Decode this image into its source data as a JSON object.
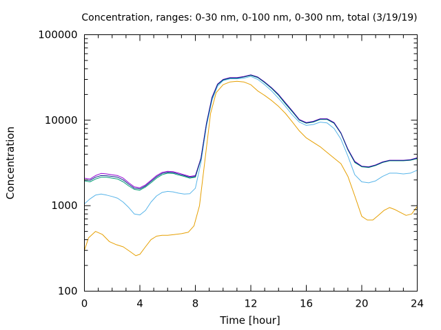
{
  "chart_data": {
    "type": "line",
    "title": "Concentration, ranges: 0-30 nm, 0-100 nm, 0-300 nm, total (3/19/19)",
    "xlabel": "Time [hour]",
    "ylabel": "Concentration",
    "xlim": [
      0,
      24
    ],
    "ylim": [
      100,
      100000
    ],
    "yscale": "log",
    "xticks": [
      0,
      4,
      8,
      12,
      16,
      20,
      24
    ],
    "xtick_labels": [
      "0",
      "4",
      "8",
      "12",
      "16",
      "20",
      "24"
    ],
    "yticks": [
      100,
      1000,
      10000,
      100000
    ],
    "ytick_labels": [
      "100",
      "1000",
      "10000",
      "100000"
    ],
    "grid": false,
    "legend": "none",
    "series": [
      {
        "color": "#e69f00",
        "points": [
          [
            0,
            300
          ],
          [
            0.3,
            420
          ],
          [
            0.8,
            500
          ],
          [
            1.3,
            460
          ],
          [
            1.8,
            380
          ],
          [
            2.3,
            350
          ],
          [
            2.8,
            330
          ],
          [
            3.3,
            290
          ],
          [
            3.7,
            260
          ],
          [
            4.0,
            270
          ],
          [
            4.4,
            330
          ],
          [
            4.8,
            400
          ],
          [
            5.2,
            440
          ],
          [
            5.6,
            450
          ],
          [
            6.0,
            450
          ],
          [
            6.5,
            460
          ],
          [
            7.0,
            470
          ],
          [
            7.5,
            490
          ],
          [
            7.9,
            580
          ],
          [
            8.3,
            1000
          ],
          [
            8.7,
            3500
          ],
          [
            9.1,
            12000
          ],
          [
            9.5,
            21000
          ],
          [
            10.0,
            26000
          ],
          [
            10.5,
            28000
          ],
          [
            11.0,
            28500
          ],
          [
            11.5,
            28000
          ],
          [
            12.0,
            26000
          ],
          [
            12.5,
            22000
          ],
          [
            13.0,
            19500
          ],
          [
            13.5,
            17000
          ],
          [
            14.0,
            14500
          ],
          [
            14.5,
            12000
          ],
          [
            15.0,
            9500
          ],
          [
            15.5,
            7500
          ],
          [
            16.0,
            6200
          ],
          [
            16.5,
            5500
          ],
          [
            17.0,
            4900
          ],
          [
            17.5,
            4200
          ],
          [
            18.0,
            3600
          ],
          [
            18.5,
            3100
          ],
          [
            19.0,
            2200
          ],
          [
            19.5,
            1300
          ],
          [
            20.0,
            750
          ],
          [
            20.4,
            680
          ],
          [
            20.8,
            680
          ],
          [
            21.2,
            770
          ],
          [
            21.6,
            880
          ],
          [
            22.0,
            950
          ],
          [
            22.4,
            900
          ],
          [
            22.8,
            830
          ],
          [
            23.2,
            770
          ],
          [
            23.6,
            800
          ],
          [
            24.0,
            980
          ]
        ]
      },
      {
        "color": "#56b4e9",
        "points": [
          [
            0,
            1050
          ],
          [
            0.4,
            1200
          ],
          [
            0.8,
            1330
          ],
          [
            1.2,
            1370
          ],
          [
            1.6,
            1330
          ],
          [
            2.0,
            1280
          ],
          [
            2.4,
            1220
          ],
          [
            2.8,
            1100
          ],
          [
            3.2,
            950
          ],
          [
            3.6,
            800
          ],
          [
            4.0,
            780
          ],
          [
            4.4,
            880
          ],
          [
            4.8,
            1100
          ],
          [
            5.2,
            1300
          ],
          [
            5.6,
            1430
          ],
          [
            6.0,
            1470
          ],
          [
            6.4,
            1450
          ],
          [
            6.8,
            1400
          ],
          [
            7.2,
            1370
          ],
          [
            7.6,
            1380
          ],
          [
            8.0,
            1600
          ],
          [
            8.4,
            3200
          ],
          [
            8.8,
            8500
          ],
          [
            9.2,
            17000
          ],
          [
            9.6,
            25000
          ],
          [
            10.0,
            29000
          ],
          [
            10.5,
            30500
          ],
          [
            11.0,
            30500
          ],
          [
            11.5,
            31000
          ],
          [
            12.0,
            32500
          ],
          [
            12.5,
            30000
          ],
          [
            13.0,
            26000
          ],
          [
            13.5,
            22000
          ],
          [
            14.0,
            18000
          ],
          [
            14.5,
            14500
          ],
          [
            15.0,
            11500
          ],
          [
            15.5,
            9500
          ],
          [
            16.0,
            8700
          ],
          [
            16.5,
            8900
          ],
          [
            17.0,
            9500
          ],
          [
            17.5,
            9300
          ],
          [
            18.0,
            8000
          ],
          [
            18.5,
            6000
          ],
          [
            19.0,
            3800
          ],
          [
            19.5,
            2300
          ],
          [
            20.0,
            1900
          ],
          [
            20.5,
            1850
          ],
          [
            21.0,
            1950
          ],
          [
            21.5,
            2200
          ],
          [
            22.0,
            2400
          ],
          [
            22.5,
            2400
          ],
          [
            23.0,
            2350
          ],
          [
            23.5,
            2400
          ],
          [
            24.0,
            2600
          ]
        ]
      },
      {
        "color": "#009e73",
        "points": [
          [
            0,
            1950
          ],
          [
            0.4,
            1900
          ],
          [
            0.8,
            2050
          ],
          [
            1.2,
            2150
          ],
          [
            1.6,
            2150
          ],
          [
            2.0,
            2100
          ],
          [
            2.4,
            2050
          ],
          [
            2.8,
            1900
          ],
          [
            3.2,
            1700
          ],
          [
            3.6,
            1550
          ],
          [
            4.0,
            1520
          ],
          [
            4.4,
            1650
          ],
          [
            4.8,
            1850
          ],
          [
            5.2,
            2100
          ],
          [
            5.6,
            2300
          ],
          [
            6.0,
            2400
          ],
          [
            6.4,
            2380
          ],
          [
            6.8,
            2280
          ],
          [
            7.2,
            2200
          ],
          [
            7.6,
            2100
          ],
          [
            8.0,
            2150
          ],
          [
            8.4,
            3500
          ],
          [
            8.8,
            9000
          ],
          [
            9.2,
            18000
          ],
          [
            9.6,
            26000
          ],
          [
            10.0,
            29500
          ],
          [
            10.5,
            31000
          ],
          [
            11.0,
            31000
          ],
          [
            11.5,
            32000
          ],
          [
            12.0,
            33500
          ],
          [
            12.5,
            31500
          ],
          [
            13.0,
            27500
          ],
          [
            13.5,
            23500
          ],
          [
            14.0,
            19500
          ],
          [
            14.5,
            15500
          ],
          [
            15.0,
            12500
          ],
          [
            15.5,
            10000
          ],
          [
            16.0,
            9200
          ],
          [
            16.5,
            9500
          ],
          [
            17.0,
            10200
          ],
          [
            17.5,
            10200
          ],
          [
            18.0,
            9200
          ],
          [
            18.5,
            7000
          ],
          [
            19.0,
            4500
          ],
          [
            19.5,
            3200
          ],
          [
            20.0,
            2850
          ],
          [
            20.5,
            2800
          ],
          [
            21.0,
            2950
          ],
          [
            21.5,
            3200
          ],
          [
            22.0,
            3350
          ],
          [
            22.5,
            3350
          ],
          [
            23.0,
            3350
          ],
          [
            23.5,
            3400
          ],
          [
            24.0,
            3550
          ]
        ]
      },
      {
        "color": "#9400d3",
        "points": [
          [
            0,
            2100
          ],
          [
            0.4,
            2050
          ],
          [
            0.8,
            2250
          ],
          [
            1.2,
            2380
          ],
          [
            1.6,
            2350
          ],
          [
            2.0,
            2300
          ],
          [
            2.4,
            2250
          ],
          [
            2.8,
            2100
          ],
          [
            3.2,
            1850
          ],
          [
            3.6,
            1660
          ],
          [
            4.0,
            1620
          ],
          [
            4.4,
            1750
          ],
          [
            4.8,
            1980
          ],
          [
            5.2,
            2250
          ],
          [
            5.6,
            2450
          ],
          [
            6.0,
            2520
          ],
          [
            6.4,
            2500
          ],
          [
            6.8,
            2400
          ],
          [
            7.2,
            2300
          ],
          [
            7.6,
            2200
          ],
          [
            8.0,
            2250
          ],
          [
            8.4,
            3600
          ],
          [
            8.8,
            9200
          ],
          [
            9.2,
            18500
          ],
          [
            9.6,
            26500
          ],
          [
            10.0,
            30000
          ],
          [
            10.5,
            31500
          ],
          [
            11.0,
            31500
          ],
          [
            11.5,
            32500
          ],
          [
            12.0,
            34000
          ],
          [
            12.5,
            32000
          ],
          [
            13.0,
            28000
          ],
          [
            13.5,
            24000
          ],
          [
            14.0,
            20000
          ],
          [
            14.5,
            16000
          ],
          [
            15.0,
            12800
          ],
          [
            15.5,
            10200
          ],
          [
            16.0,
            9400
          ],
          [
            16.5,
            9700
          ],
          [
            17.0,
            10400
          ],
          [
            17.5,
            10400
          ],
          [
            18.0,
            9400
          ],
          [
            18.5,
            7100
          ],
          [
            19.0,
            4600
          ],
          [
            19.5,
            3300
          ],
          [
            20.0,
            2900
          ],
          [
            20.5,
            2850
          ],
          [
            21.0,
            3000
          ],
          [
            21.5,
            3250
          ],
          [
            22.0,
            3400
          ],
          [
            22.5,
            3400
          ],
          [
            23.0,
            3400
          ],
          [
            23.5,
            3450
          ],
          [
            24.0,
            3650
          ]
        ]
      },
      {
        "color": "#0a2a8a",
        "points": [
          [
            0,
            2000
          ],
          [
            0.4,
            1980
          ],
          [
            0.8,
            2150
          ],
          [
            1.2,
            2250
          ],
          [
            1.6,
            2240
          ],
          [
            2.0,
            2200
          ],
          [
            2.4,
            2150
          ],
          [
            2.8,
            2000
          ],
          [
            3.2,
            1780
          ],
          [
            3.6,
            1600
          ],
          [
            4.0,
            1570
          ],
          [
            4.4,
            1700
          ],
          [
            4.8,
            1920
          ],
          [
            5.2,
            2180
          ],
          [
            5.6,
            2380
          ],
          [
            6.0,
            2460
          ],
          [
            6.4,
            2440
          ],
          [
            6.8,
            2340
          ],
          [
            7.2,
            2250
          ],
          [
            7.6,
            2150
          ],
          [
            8.0,
            2200
          ],
          [
            8.4,
            3550
          ],
          [
            8.8,
            9100
          ],
          [
            9.2,
            18200
          ],
          [
            9.6,
            26200
          ],
          [
            10.0,
            29800
          ],
          [
            10.5,
            31200
          ],
          [
            11.0,
            31200
          ],
          [
            11.5,
            32200
          ],
          [
            12.0,
            33800
          ],
          [
            12.5,
            31800
          ],
          [
            13.0,
            27800
          ],
          [
            13.5,
            23800
          ],
          [
            14.0,
            19800
          ],
          [
            14.5,
            15800
          ],
          [
            15.0,
            12700
          ],
          [
            15.5,
            10100
          ],
          [
            16.0,
            9300
          ],
          [
            16.5,
            9600
          ],
          [
            17.0,
            10300
          ],
          [
            17.5,
            10300
          ],
          [
            18.0,
            9300
          ],
          [
            18.5,
            7050
          ],
          [
            19.0,
            4550
          ],
          [
            19.5,
            3250
          ],
          [
            20.0,
            2880
          ],
          [
            20.5,
            2830
          ],
          [
            21.0,
            2980
          ],
          [
            21.5,
            3230
          ],
          [
            22.0,
            3380
          ],
          [
            22.5,
            3380
          ],
          [
            23.0,
            3380
          ],
          [
            23.5,
            3430
          ],
          [
            24.0,
            3600
          ]
        ]
      }
    ]
  }
}
